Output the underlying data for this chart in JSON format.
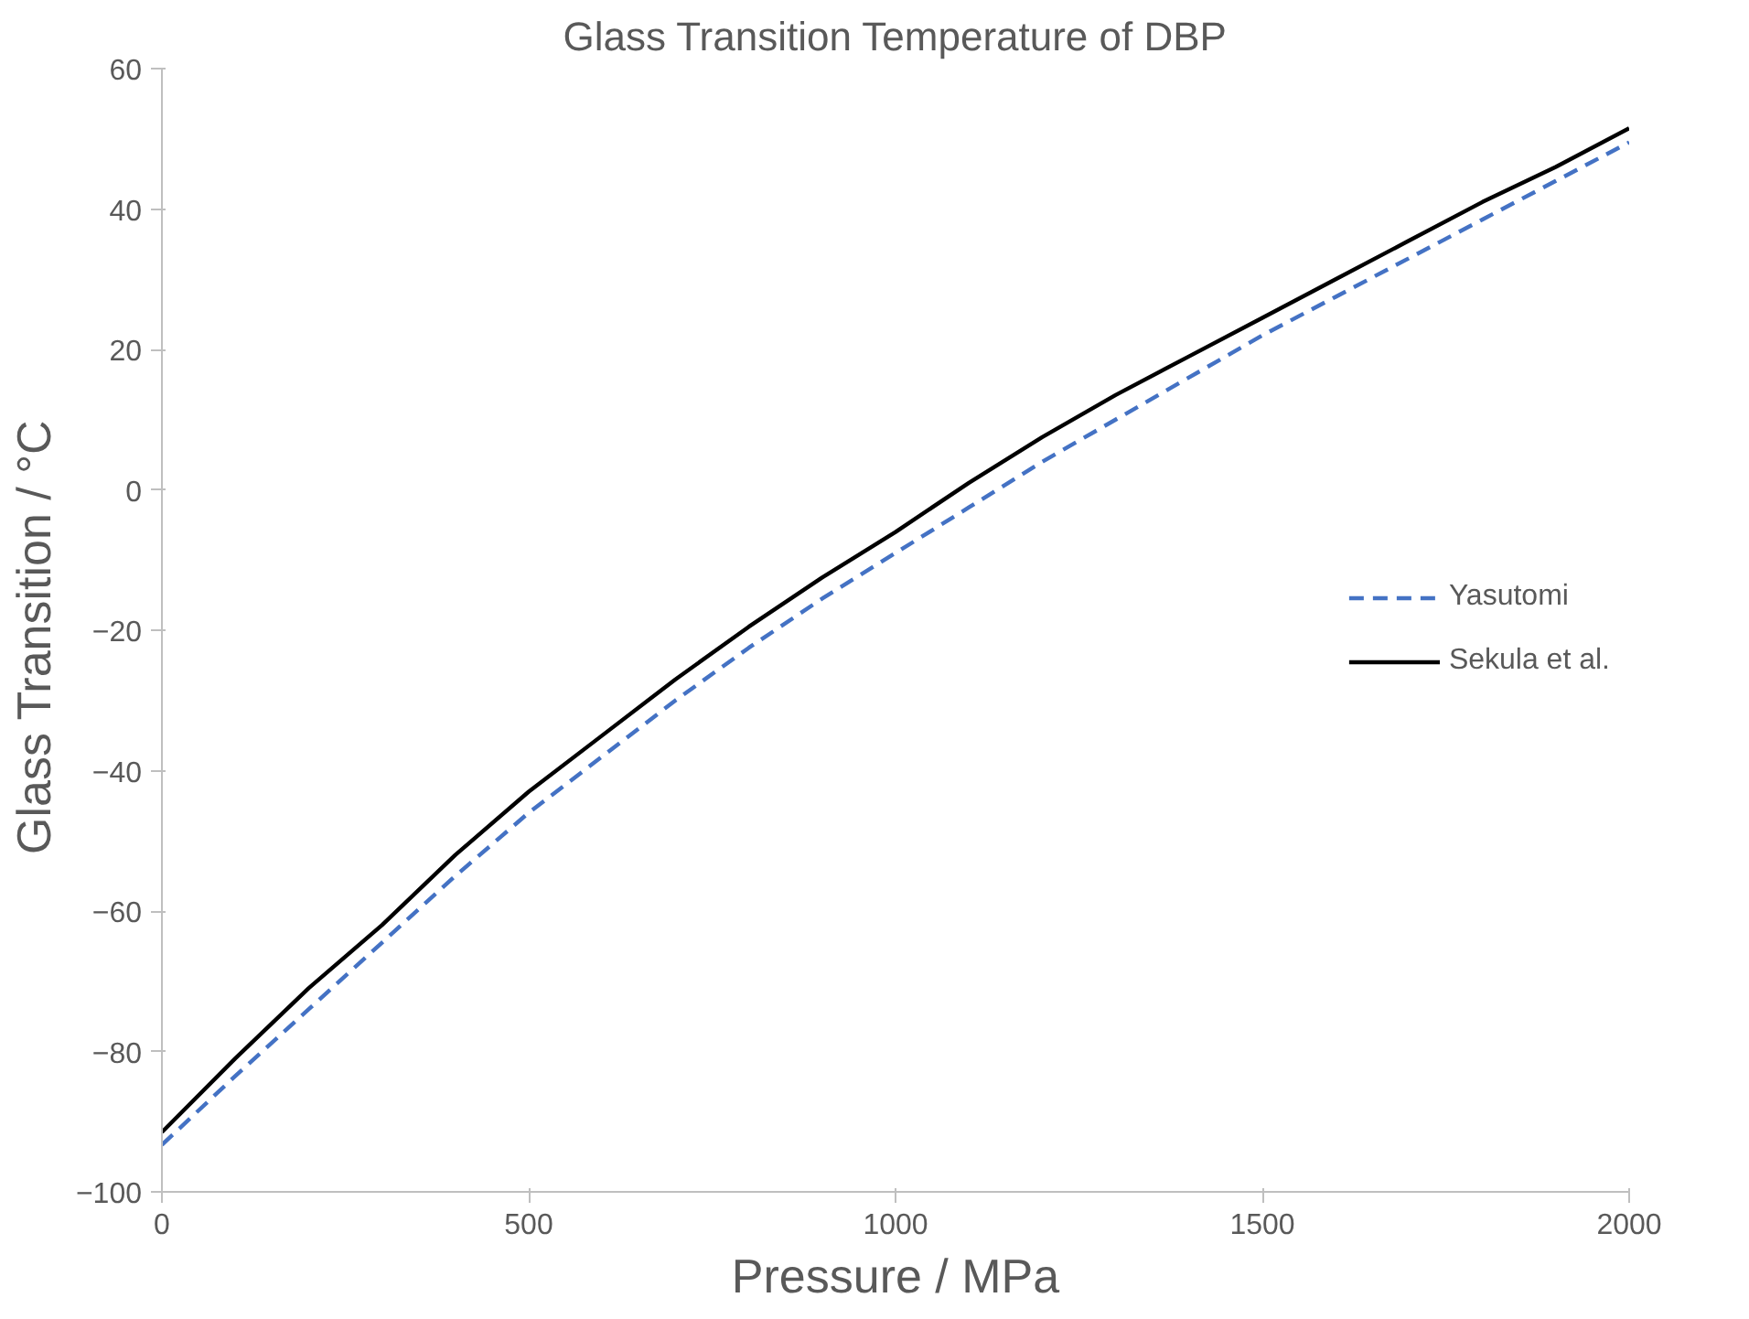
{
  "chart_data": {
    "type": "line",
    "title": "Glass Transition Temperature of DBP",
    "xlabel": "Pressure / MPa",
    "ylabel": "Glass Transition  / °C",
    "x": [
      0,
      100,
      200,
      300,
      400,
      500,
      600,
      700,
      800,
      900,
      1000,
      1100,
      1200,
      1300,
      1400,
      1500,
      1600,
      1700,
      1800,
      1900,
      2000
    ],
    "series": [
      {
        "name": "Yasutomi",
        "color": "#4472c4",
        "line_style": "dashed",
        "values": [
          -93.3,
          -83.5,
          -74,
          -64.5,
          -55,
          -46,
          -38,
          -30,
          -22.5,
          -15.5,
          -9,
          -2.5,
          4,
          10,
          16,
          22,
          27.5,
          33,
          38.5,
          44,
          49.5
        ]
      },
      {
        "name": "Sekula et al.",
        "color": "#000000",
        "line_style": "solid",
        "values": [
          -91.5,
          -81,
          -71,
          -62,
          -52,
          -43,
          -35,
          -27,
          -19.5,
          -12.5,
          -6,
          1,
          7.5,
          13.5,
          19,
          24.5,
          30,
          35.5,
          41,
          46,
          51.5
        ]
      }
    ],
    "xlim": [
      0,
      2000
    ],
    "xticks": [
      0,
      500,
      1000,
      1500,
      2000
    ],
    "ylim": [
      -100,
      60
    ],
    "yticks": [
      -100,
      -80,
      -60,
      -40,
      -20,
      0,
      20,
      40,
      60
    ],
    "grid": false,
    "legend": "right",
    "marker": "none"
  }
}
